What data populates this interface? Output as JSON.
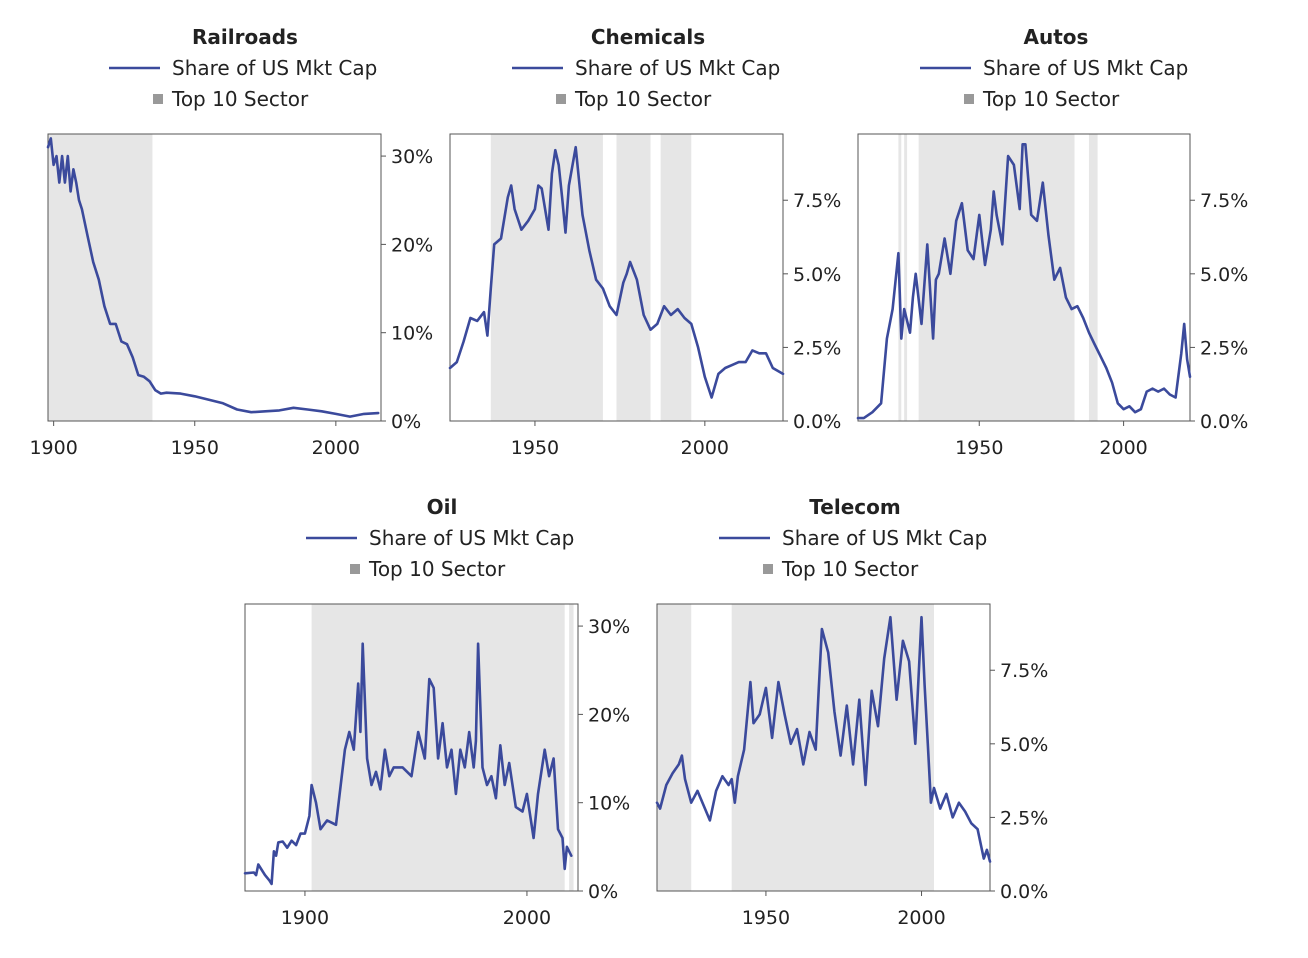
{
  "colors": {
    "line": "#3b4a9c",
    "shade": "#e6e6e6",
    "axis": "#555555",
    "legend_square": "#999999"
  },
  "legend": {
    "line_label": "Share of US Mkt Cap",
    "shade_label": "Top 10 Sector"
  },
  "chart_data": [
    {
      "type": "line",
      "title": "Railroads",
      "xlim": [
        1898,
        2016
      ],
      "ylim": [
        0,
        32.5
      ],
      "xticks": [
        {
          "v": 1900,
          "l": "1900"
        },
        {
          "v": 1950,
          "l": "1950"
        },
        {
          "v": 2000,
          "l": "2000"
        }
      ],
      "yticks": [
        {
          "v": 0,
          "l": "0%"
        },
        {
          "v": 10,
          "l": "10%"
        },
        {
          "v": 20,
          "l": "20%"
        },
        {
          "v": 30,
          "l": "30%"
        }
      ],
      "shaded": [
        [
          1898,
          1935
        ]
      ],
      "series": [
        {
          "name": "Share of US Mkt Cap",
          "x": [
            1898,
            1899,
            1900,
            1901,
            1902,
            1903,
            1904,
            1905,
            1906,
            1907,
            1908,
            1909,
            1910,
            1912,
            1914,
            1916,
            1918,
            1920,
            1922,
            1924,
            1926,
            1928,
            1930,
            1932,
            1934,
            1936,
            1938,
            1940,
            1945,
            1950,
            1955,
            1960,
            1965,
            1970,
            1975,
            1980,
            1985,
            1990,
            1995,
            2000,
            2005,
            2010,
            2015
          ],
          "y": [
            31,
            32,
            29,
            30,
            27,
            30,
            27,
            30,
            26,
            28.5,
            27,
            25,
            24,
            21,
            18,
            16,
            13,
            11,
            11,
            9,
            8.7,
            7.2,
            5.2,
            5,
            4.5,
            3.5,
            3.1,
            3.2,
            3.1,
            2.8,
            2.4,
            2,
            1.3,
            1,
            1.1,
            1.2,
            1.5,
            1.3,
            1.1,
            0.8,
            0.5,
            0.8,
            0.9
          ]
        }
      ]
    },
    {
      "type": "line",
      "title": "Chemicals",
      "xlim": [
        1925,
        2023
      ],
      "ylim": [
        0,
        9.75
      ],
      "xticks": [
        {
          "v": 1950,
          "l": "1950"
        },
        {
          "v": 2000,
          "l": "2000"
        }
      ],
      "yticks": [
        {
          "v": 0,
          "l": "0.0%"
        },
        {
          "v": 2.5,
          "l": "2.5%"
        },
        {
          "v": 5,
          "l": "5.0%"
        },
        {
          "v": 7.5,
          "l": "7.5%"
        }
      ],
      "shaded": [
        [
          1937,
          1970
        ],
        [
          1974,
          1984
        ],
        [
          1987,
          1996
        ]
      ],
      "series": [
        {
          "name": "Share of US Mkt Cap",
          "x": [
            1925,
            1927,
            1929,
            1931,
            1933,
            1935,
            1936,
            1937,
            1938,
            1940,
            1942,
            1943,
            1944,
            1946,
            1948,
            1950,
            1951,
            1952,
            1954,
            1955,
            1956,
            1957,
            1958,
            1959,
            1960,
            1962,
            1964,
            1966,
            1968,
            1970,
            1972,
            1974,
            1976,
            1977,
            1978,
            1980,
            1982,
            1984,
            1986,
            1988,
            1990,
            1992,
            1994,
            1996,
            1998,
            2000,
            2002,
            2004,
            2006,
            2008,
            2010,
            2012,
            2014,
            2016,
            2018,
            2020,
            2023
          ],
          "y": [
            1.8,
            2,
            2.7,
            3.5,
            3.4,
            3.7,
            2.9,
            4.5,
            6,
            6.2,
            7.6,
            8,
            7.2,
            6.5,
            6.8,
            7.2,
            8,
            7.9,
            6.5,
            8.4,
            9.2,
            8.7,
            7.6,
            6.4,
            8,
            9.3,
            7,
            5.8,
            4.8,
            4.5,
            3.9,
            3.6,
            4.7,
            5,
            5.4,
            4.8,
            3.6,
            3.1,
            3.3,
            3.9,
            3.6,
            3.8,
            3.5,
            3.3,
            2.5,
            1.5,
            0.8,
            1.6,
            1.8,
            1.9,
            2,
            2,
            2.4,
            2.3,
            2.3,
            1.8,
            1.6
          ]
        }
      ]
    },
    {
      "type": "line",
      "title": "Autos",
      "xlim": [
        1908,
        2023
      ],
      "ylim": [
        0,
        9.75
      ],
      "xticks": [
        {
          "v": 1950,
          "l": "1950"
        },
        {
          "v": 2000,
          "l": "2000"
        }
      ],
      "yticks": [
        {
          "v": 0,
          "l": "0.0%"
        },
        {
          "v": 2.5,
          "l": "2.5%"
        },
        {
          "v": 5,
          "l": "5.0%"
        },
        {
          "v": 7.5,
          "l": "7.5%"
        }
      ],
      "shaded": [
        [
          1922,
          1923
        ],
        [
          1924,
          1925
        ],
        [
          1929,
          1983
        ],
        [
          1988,
          1991
        ]
      ],
      "series": [
        {
          "name": "Share of US Mkt Cap",
          "x": [
            1908,
            1910,
            1913,
            1916,
            1918,
            1920,
            1922,
            1923,
            1924,
            1926,
            1927,
            1928,
            1930,
            1932,
            1934,
            1935,
            1936,
            1938,
            1940,
            1942,
            1944,
            1946,
            1948,
            1950,
            1952,
            1954,
            1955,
            1956,
            1958,
            1960,
            1962,
            1964,
            1965,
            1966,
            1968,
            1970,
            1972,
            1974,
            1976,
            1978,
            1980,
            1982,
            1984,
            1986,
            1988,
            1990,
            1992,
            1994,
            1996,
            1998,
            2000,
            2002,
            2004,
            2006,
            2008,
            2010,
            2012,
            2014,
            2016,
            2018,
            2020,
            2021,
            2022,
            2023
          ],
          "y": [
            0.1,
            0.1,
            0.3,
            0.6,
            2.8,
            3.8,
            5.7,
            2.8,
            3.8,
            3,
            4.2,
            5,
            3.3,
            6,
            2.8,
            4.8,
            5,
            6.2,
            5,
            6.8,
            7.4,
            5.8,
            5.5,
            7,
            5.3,
            6.5,
            7.8,
            7,
            6,
            9,
            8.7,
            7.2,
            9.4,
            9.4,
            7,
            6.8,
            8.1,
            6.3,
            4.8,
            5.2,
            4.2,
            3.8,
            3.9,
            3.5,
            3,
            2.6,
            2.2,
            1.8,
            1.3,
            0.6,
            0.4,
            0.5,
            0.3,
            0.4,
            1,
            1.1,
            1,
            1.1,
            0.9,
            0.8,
            2.3,
            3.3,
            2.1,
            1.5
          ]
        }
      ]
    },
    {
      "type": "line",
      "title": "Oil",
      "xlim": [
        1873,
        2023
      ],
      "ylim": [
        0,
        32.5
      ],
      "xticks": [
        {
          "v": 1900,
          "l": "1900"
        },
        {
          "v": 2000,
          "l": "2000"
        }
      ],
      "yticks": [
        {
          "v": 0,
          "l": "0%"
        },
        {
          "v": 10,
          "l": "10%"
        },
        {
          "v": 20,
          "l": "20%"
        },
        {
          "v": 30,
          "l": "30%"
        }
      ],
      "shaded": [
        [
          1903,
          2017
        ],
        [
          2019,
          2021
        ]
      ],
      "series": [
        {
          "name": "Share of US Mkt Cap",
          "x": [
            1873,
            1877,
            1878,
            1879,
            1882,
            1884,
            1885,
            1886,
            1887,
            1888,
            1890,
            1892,
            1894,
            1896,
            1898,
            1900,
            1902,
            1903,
            1905,
            1907,
            1910,
            1914,
            1918,
            1920,
            1922,
            1924,
            1925,
            1926,
            1928,
            1930,
            1932,
            1934,
            1936,
            1938,
            1940,
            1944,
            1948,
            1951,
            1954,
            1956,
            1958,
            1960,
            1962,
            1964,
            1966,
            1968,
            1970,
            1972,
            1974,
            1976,
            1977,
            1978,
            1980,
            1982,
            1984,
            1986,
            1988,
            1990,
            1992,
            1995,
            1998,
            2000,
            2003,
            2005,
            2008,
            2010,
            2012,
            2014,
            2016,
            2017,
            2018,
            2019,
            2020
          ],
          "y": [
            2,
            2.1,
            1.8,
            3,
            1.8,
            1.2,
            0.8,
            4.5,
            4,
            5.5,
            5.6,
            4.9,
            5.7,
            5.2,
            6.5,
            6.5,
            8.5,
            12,
            10,
            7,
            8,
            7.5,
            16,
            18,
            16,
            23.5,
            18,
            28,
            15,
            12,
            13.5,
            11.5,
            16,
            13,
            14,
            14,
            13,
            18,
            15,
            24,
            23,
            15,
            19,
            14,
            16,
            11,
            16,
            14,
            18,
            14,
            17,
            28,
            14,
            12,
            13,
            10.5,
            16.5,
            12,
            14.5,
            9.5,
            9,
            11,
            6,
            11,
            16,
            13,
            15,
            7,
            6,
            2.5,
            5,
            4.5,
            4
          ]
        }
      ]
    },
    {
      "type": "line",
      "title": "Telecom",
      "xlim": [
        1915,
        2022
      ],
      "ylim": [
        0,
        9.75
      ],
      "xticks": [
        {
          "v": 1950,
          "l": "1950"
        },
        {
          "v": 2000,
          "l": "2000"
        }
      ],
      "yticks": [
        {
          "v": 0,
          "l": "0.0%"
        },
        {
          "v": 2.5,
          "l": "2.5%"
        },
        {
          "v": 5,
          "l": "5.0%"
        },
        {
          "v": 7.5,
          "l": "7.5%"
        }
      ],
      "shaded": [
        [
          1915,
          1926
        ],
        [
          1939,
          2004
        ]
      ],
      "series": [
        {
          "name": "Share of US Mkt Cap",
          "x": [
            1915,
            1916,
            1918,
            1920,
            1922,
            1923,
            1924,
            1926,
            1928,
            1930,
            1932,
            1934,
            1936,
            1938,
            1939,
            1940,
            1941,
            1943,
            1945,
            1946,
            1948,
            1950,
            1952,
            1954,
            1956,
            1958,
            1960,
            1962,
            1964,
            1966,
            1967,
            1968,
            1970,
            1972,
            1974,
            1976,
            1978,
            1980,
            1982,
            1984,
            1986,
            1988,
            1990,
            1992,
            1994,
            1996,
            1998,
            2000,
            2001,
            2002,
            2003,
            2004,
            2006,
            2008,
            2010,
            2012,
            2014,
            2016,
            2018,
            2020,
            2021,
            2022
          ],
          "y": [
            3,
            2.8,
            3.6,
            4,
            4.3,
            4.6,
            3.8,
            3,
            3.4,
            2.9,
            2.4,
            3.4,
            3.9,
            3.6,
            3.8,
            3,
            3.9,
            4.8,
            7.1,
            5.7,
            6,
            6.9,
            5.2,
            7.1,
            6,
            5,
            5.5,
            4.3,
            5.4,
            4.8,
            6.9,
            8.9,
            8.1,
            6.1,
            4.6,
            6.3,
            4.3,
            6.5,
            3.6,
            6.8,
            5.6,
            7.9,
            9.3,
            6.5,
            8.5,
            7.8,
            5,
            9.3,
            7,
            5,
            3,
            3.5,
            2.8,
            3.3,
            2.5,
            3,
            2.7,
            2.3,
            2.1,
            1.1,
            1.4,
            1
          ]
        }
      ]
    }
  ]
}
